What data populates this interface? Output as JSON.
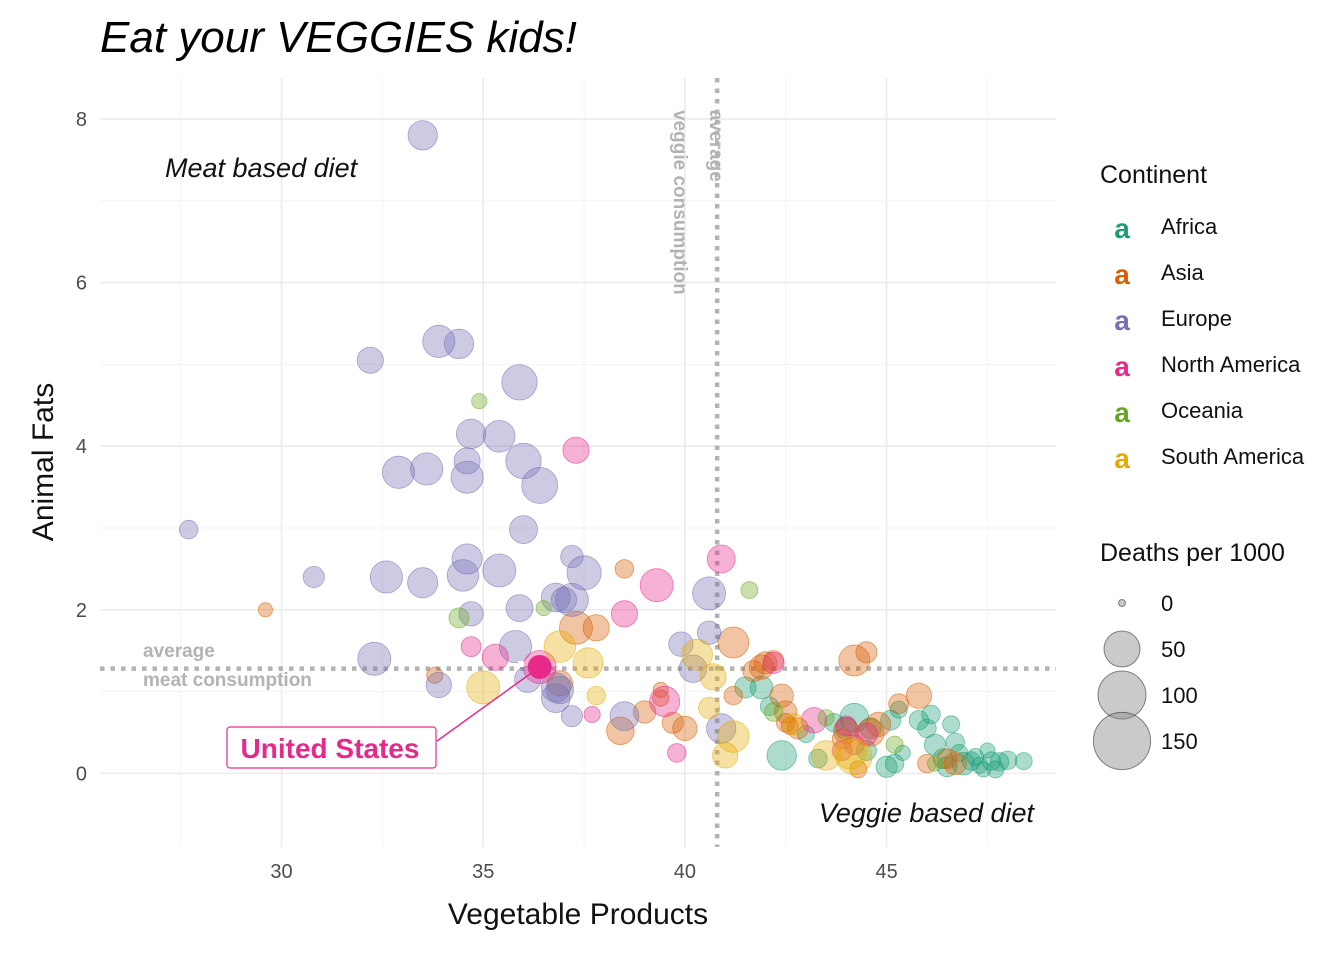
{
  "chart_data": {
    "type": "scatter",
    "title": "Eat your VEGGIES kids!",
    "xlabel": "Vegetable Products",
    "ylabel": "Animal Fats",
    "xlim": [
      25.5,
      49.2
    ],
    "ylim": [
      -0.9,
      8.5
    ],
    "x_ticks": [
      30,
      35,
      40,
      45
    ],
    "y_ticks": [
      0,
      2,
      4,
      6,
      8
    ],
    "grid": true,
    "reference_lines": {
      "vertical": {
        "x": 40.8,
        "label_line1": "average",
        "label_line2": "veggie consumption"
      },
      "horizontal": {
        "y": 1.28,
        "label_line1": "average",
        "label_line2": "meat consumption"
      }
    },
    "annotations": {
      "top_left": "Meat based diet",
      "bottom_right": "Veggie based diet"
    },
    "highlight": {
      "label": "United States",
      "x": 36.4,
      "y": 1.3,
      "deaths": 40
    },
    "legend": {
      "position": "right",
      "color_title": "Continent",
      "key_glyph": "a",
      "continents": [
        {
          "name": "Africa",
          "color": "#1b9e77"
        },
        {
          "name": "Asia",
          "color": "#d95f02"
        },
        {
          "name": "Europe",
          "color": "#7570b3"
        },
        {
          "name": "North America",
          "color": "#e7298a"
        },
        {
          "name": "Oceania",
          "color": "#66a61e"
        },
        {
          "name": "South America",
          "color": "#e6ab02"
        }
      ],
      "size_title": "Deaths per 1000",
      "size_values": [
        "0",
        "50",
        "100",
        "150"
      ]
    },
    "series": [
      {
        "name": "Africa",
        "points": [
          [
            41.5,
            1.05,
            12
          ],
          [
            41.9,
            1.05,
            15
          ],
          [
            42.4,
            0.22,
            30
          ],
          [
            42.1,
            0.82,
            8
          ],
          [
            43.0,
            0.48,
            6
          ],
          [
            43.7,
            0.62,
            8
          ],
          [
            44.2,
            0.68,
            28
          ],
          [
            44.0,
            0.55,
            14
          ],
          [
            44.6,
            0.55,
            12
          ],
          [
            44.5,
            0.28,
            10
          ],
          [
            45.0,
            0.08,
            12
          ],
          [
            45.1,
            0.65,
            10
          ],
          [
            45.3,
            0.78,
            6
          ],
          [
            45.4,
            0.25,
            4
          ],
          [
            45.8,
            0.65,
            9
          ],
          [
            46.0,
            0.55,
            8
          ],
          [
            46.1,
            0.72,
            8
          ],
          [
            46.2,
            0.35,
            12
          ],
          [
            46.4,
            0.18,
            10
          ],
          [
            46.6,
            0.6,
            6
          ],
          [
            46.7,
            0.38,
            8
          ],
          [
            46.9,
            0.12,
            15
          ],
          [
            46.8,
            0.25,
            6
          ],
          [
            47.1,
            0.15,
            8
          ],
          [
            47.2,
            0.2,
            6
          ],
          [
            47.3,
            0.1,
            5
          ],
          [
            47.6,
            0.15,
            8
          ],
          [
            47.8,
            0.14,
            8
          ],
          [
            48.0,
            0.16,
            8
          ],
          [
            47.5,
            0.28,
            4
          ],
          [
            48.4,
            0.15,
            6
          ],
          [
            45.2,
            0.12,
            8
          ],
          [
            43.3,
            0.18,
            8
          ],
          [
            46.5,
            0.08,
            10
          ],
          [
            47.7,
            0.05,
            6
          ],
          [
            47.4,
            0.05,
            4
          ]
        ]
      },
      {
        "name": "Asia",
        "points": [
          [
            29.6,
            2.0,
            3
          ],
          [
            33.8,
            1.2,
            5
          ],
          [
            36.9,
            1.1,
            20
          ],
          [
            37.3,
            1.78,
            40
          ],
          [
            37.8,
            1.78,
            22
          ],
          [
            38.4,
            0.52,
            25
          ],
          [
            38.5,
            2.5,
            8
          ],
          [
            39.0,
            0.75,
            14
          ],
          [
            39.4,
            0.92,
            5
          ],
          [
            39.4,
            1.02,
            4
          ],
          [
            39.7,
            0.62,
            12
          ],
          [
            40.0,
            0.55,
            18
          ],
          [
            41.2,
            1.6,
            34
          ],
          [
            41.2,
            0.95,
            8
          ],
          [
            41.7,
            1.25,
            12
          ],
          [
            41.9,
            1.3,
            18
          ],
          [
            42.0,
            1.35,
            14
          ],
          [
            42.2,
            1.38,
            10
          ],
          [
            42.4,
            0.95,
            16
          ],
          [
            42.5,
            0.75,
            14
          ],
          [
            42.5,
            0.62,
            8
          ],
          [
            42.6,
            0.58,
            6
          ],
          [
            43.9,
            0.42,
            10
          ],
          [
            44.0,
            0.52,
            20
          ],
          [
            44.2,
            1.38,
            34
          ],
          [
            44.5,
            1.48,
            12
          ],
          [
            44.6,
            0.5,
            25
          ],
          [
            44.8,
            0.6,
            18
          ],
          [
            45.3,
            0.85,
            10
          ],
          [
            45.8,
            0.95,
            20
          ],
          [
            46.0,
            0.12,
            8
          ],
          [
            46.5,
            0.18,
            10
          ],
          [
            46.7,
            0.12,
            14
          ],
          [
            44.3,
            0.05,
            6
          ],
          [
            42.8,
            0.55,
            12
          ]
        ]
      },
      {
        "name": "Europe",
        "points": [
          [
            33.5,
            7.8,
            30
          ],
          [
            32.2,
            5.05,
            22
          ],
          [
            33.9,
            5.28,
            38
          ],
          [
            34.4,
            5.25,
            30
          ],
          [
            35.9,
            4.78,
            48
          ],
          [
            34.7,
            4.15,
            30
          ],
          [
            35.4,
            4.12,
            36
          ],
          [
            32.9,
            3.68,
            38
          ],
          [
            33.6,
            3.72,
            38
          ],
          [
            34.6,
            3.82,
            22
          ],
          [
            34.6,
            3.62,
            38
          ],
          [
            36.0,
            3.82,
            48
          ],
          [
            36.4,
            3.52,
            50
          ],
          [
            27.7,
            2.98,
            8
          ],
          [
            36.0,
            2.98,
            26
          ],
          [
            37.2,
            2.65,
            14
          ],
          [
            30.8,
            2.4,
            12
          ],
          [
            32.6,
            2.4,
            38
          ],
          [
            33.5,
            2.33,
            32
          ],
          [
            34.6,
            2.62,
            32
          ],
          [
            34.5,
            2.42,
            36
          ],
          [
            35.4,
            2.48,
            40
          ],
          [
            34.7,
            1.95,
            18
          ],
          [
            35.9,
            2.02,
            24
          ],
          [
            36.8,
            2.15,
            28
          ],
          [
            37.0,
            2.12,
            20
          ],
          [
            37.2,
            2.12,
            40
          ],
          [
            37.5,
            2.45,
            44
          ],
          [
            40.6,
            2.2,
            40
          ],
          [
            32.3,
            1.4,
            40
          ],
          [
            33.9,
            1.08,
            20
          ],
          [
            35.8,
            1.55,
            38
          ],
          [
            36.8,
            1.05,
            30
          ],
          [
            36.8,
            0.92,
            28
          ],
          [
            36.9,
            1.02,
            25
          ],
          [
            37.2,
            0.7,
            12
          ],
          [
            38.5,
            0.7,
            28
          ],
          [
            39.9,
            1.58,
            18
          ],
          [
            40.2,
            1.28,
            25
          ],
          [
            40.9,
            0.55,
            30
          ],
          [
            40.6,
            1.72,
            16
          ],
          [
            36.1,
            1.15,
            22
          ]
        ]
      },
      {
        "name": "North America",
        "points": [
          [
            37.3,
            3.95,
            22
          ],
          [
            38.5,
            1.95,
            22
          ],
          [
            39.3,
            2.3,
            40
          ],
          [
            40.9,
            2.62,
            26
          ],
          [
            34.7,
            1.55,
            10
          ],
          [
            35.3,
            1.42,
            22
          ],
          [
            37.7,
            0.72,
            5
          ],
          [
            39.5,
            0.88,
            32
          ],
          [
            39.8,
            0.25,
            8
          ],
          [
            42.2,
            1.35,
            12
          ],
          [
            43.2,
            0.65,
            20
          ],
          [
            43.9,
            0.28,
            10
          ],
          [
            44.2,
            0.35,
            10
          ],
          [
            44.5,
            0.48,
            14
          ],
          [
            44.0,
            0.58,
            10
          ],
          [
            36.4,
            1.3,
            40
          ]
        ]
      },
      {
        "name": "Oceania",
        "points": [
          [
            34.9,
            4.55,
            4
          ],
          [
            34.4,
            1.9,
            10
          ],
          [
            36.5,
            2.02,
            4
          ],
          [
            41.6,
            2.24,
            6
          ],
          [
            42.2,
            0.75,
            8
          ],
          [
            43.5,
            0.68,
            5
          ],
          [
            45.2,
            0.35,
            6
          ],
          [
            46.2,
            0.12,
            4
          ]
        ]
      },
      {
        "name": "South America",
        "points": [
          [
            35.0,
            1.05,
            40
          ],
          [
            36.9,
            1.55,
            36
          ],
          [
            37.6,
            1.35,
            32
          ],
          [
            37.8,
            0.95,
            8
          ],
          [
            40.3,
            1.45,
            34
          ],
          [
            40.7,
            1.18,
            22
          ],
          [
            41.2,
            0.45,
            36
          ],
          [
            41.0,
            0.22,
            20
          ],
          [
            42.7,
            0.6,
            12
          ],
          [
            44.1,
            0.25,
            38
          ],
          [
            44.2,
            0.2,
            48
          ],
          [
            43.5,
            0.22,
            30
          ],
          [
            40.6,
            0.8,
            12
          ]
        ]
      }
    ]
  }
}
